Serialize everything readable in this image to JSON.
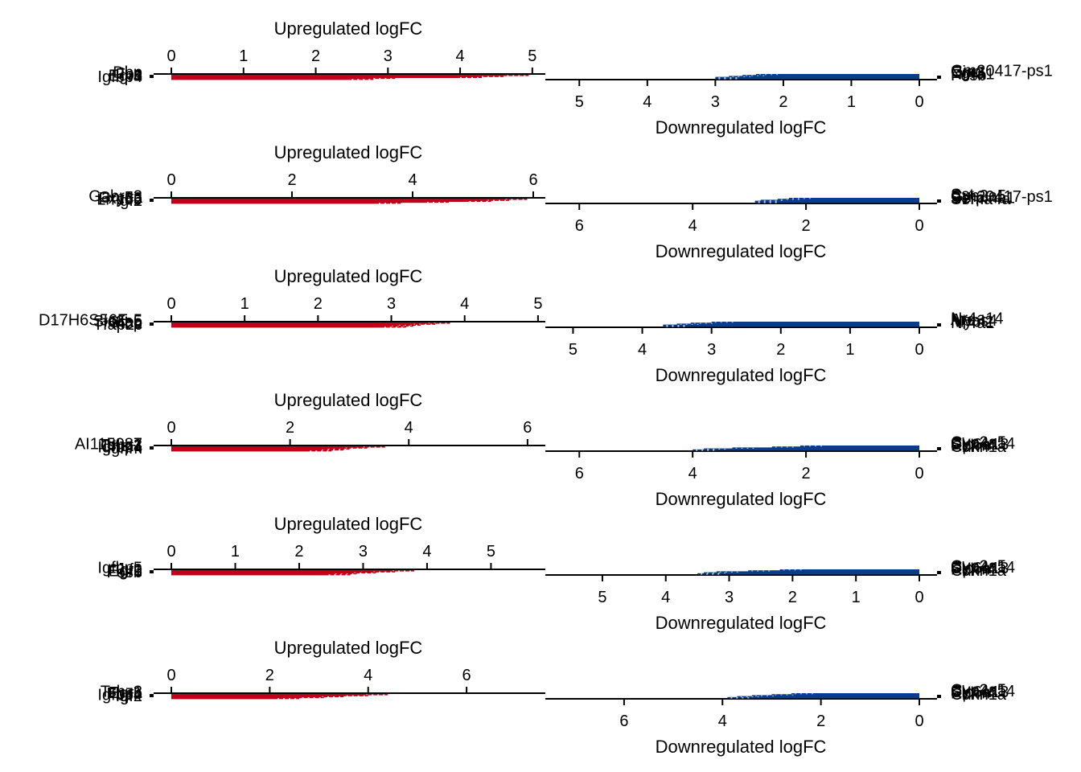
{
  "colors": {
    "up": "#C0001A",
    "down": "#0B3C8C",
    "axis": "#000000",
    "background": "#FFFFFF",
    "star": "#FFFFFF"
  },
  "chart_data": [
    {
      "type": "bar",
      "up_title": "Upregulated logFC",
      "down_title": "Downregulated logFC",
      "up_xlim": [
        0,
        5.18
      ],
      "down_xlim": [
        0,
        5.5
      ],
      "up_ticks": [
        0,
        1,
        2,
        3,
        4,
        5
      ],
      "down_ticks": [
        0,
        1,
        2,
        3,
        4,
        5
      ],
      "up_labels": [
        "Igfbp4",
        "Egr1",
        "Fos",
        "Jun",
        "Dbp"
      ],
      "down_labels": [
        "Fosb",
        "Nr4a1",
        "Egr3",
        "Ciart",
        "Gm20417-ps1"
      ],
      "up_values": [
        4.95,
        4.6,
        4.3,
        3.1,
        2.8
      ],
      "down_values": [
        2.4,
        2.6,
        2.8,
        3.0,
        3.0
      ]
    },
    {
      "type": "bar",
      "up_title": "Upregulated logFC",
      "down_title": "Downregulated logFC",
      "up_xlim": [
        0,
        6.2
      ],
      "down_xlim": [
        0,
        6.6
      ],
      "up_ticks": [
        0,
        2,
        4,
        6
      ],
      "down_ticks": [
        0,
        2,
        4,
        6
      ],
      "up_labels": [
        "Igf2",
        "Lrrc55",
        "Fxyd3",
        "Gm5a",
        "Gabra3"
      ],
      "down_labels": [
        "Sema4a",
        "Serpina1",
        "Gm20417-ps1",
        "Cyp2a5",
        "Sst"
      ],
      "up_values": [
        5.9,
        5.6,
        5.3,
        4.6,
        3.8
      ],
      "down_values": [
        2.3,
        2.5,
        2.8,
        2.9,
        2.9
      ]
    },
    {
      "type": "bar",
      "up_title": "Upregulated logFC",
      "down_title": "Downregulated logFC",
      "up_xlim": [
        0,
        5.1
      ],
      "down_xlim": [
        0,
        5.4
      ],
      "up_ticks": [
        0,
        1,
        2,
        3,
        4,
        5
      ],
      "down_ticks": [
        0,
        1,
        2,
        3,
        4,
        5
      ],
      "up_labels": [
        "Tfap2c",
        "Mbp",
        "Gfap",
        "Slc6a5",
        "D17H6S56E-5"
      ],
      "down_labels": [
        "Nr4a1",
        "Mybl2",
        "Npas4",
        "Arc",
        "Nr4a14"
      ],
      "up_values": [
        3.8,
        3.6,
        3.4,
        3.3,
        3.2
      ],
      "down_values": [
        3.0,
        3.3,
        3.5,
        3.7,
        3.7
      ]
    },
    {
      "type": "bar",
      "up_title": "Upregulated logFC",
      "down_title": "Downregulated logFC",
      "up_xlim": [
        0,
        6.3
      ],
      "down_xlim": [
        0,
        6.6
      ],
      "up_ticks": [
        0,
        2,
        4,
        6
      ],
      "down_ticks": [
        0,
        2,
        4,
        6
      ],
      "up_labels": [
        "Ighm",
        "Igfbp4",
        "Chst1",
        "Tshz3",
        "AI115087"
      ],
      "down_labels": [
        "Cdkn1a",
        "Rprm",
        "Slc6a13",
        "Cyp4a14",
        "Cyp2a5"
      ],
      "up_values": [
        3.6,
        3.3,
        3.0,
        2.9,
        2.7
      ],
      "down_values": [
        2.1,
        2.6,
        3.3,
        3.8,
        4.0
      ]
    },
    {
      "type": "bar",
      "up_title": "Upregulated logFC",
      "down_title": "Downregulated logFC",
      "up_xlim": [
        0,
        5.85
      ],
      "down_xlim": [
        0,
        5.9
      ],
      "up_ticks": [
        0,
        1,
        2,
        3,
        4,
        5
      ],
      "down_ticks": [
        0,
        1,
        2,
        3,
        4,
        5
      ],
      "up_labels": [
        "Fosb",
        "Egr1",
        "Igf2",
        "Jun",
        "Igfbp5"
      ],
      "down_labels": [
        "Cdkn1a",
        "Rprm",
        "Slc6a13",
        "Cyp4a14",
        "Cyp2a5"
      ],
      "up_values": [
        3.8,
        3.5,
        3.2,
        2.9,
        2.8
      ],
      "down_values": [
        2.2,
        2.7,
        3.2,
        3.4,
        3.5
      ]
    },
    {
      "type": "bar",
      "up_title": "Upregulated logFC",
      "down_title": "Downregulated logFC",
      "up_xlim": [
        0,
        7.6
      ],
      "down_xlim": [
        0,
        7.6
      ],
      "up_ticks": [
        0,
        2,
        4,
        6
      ],
      "down_ticks": [
        0,
        2,
        4,
        6
      ],
      "up_labels": [
        "Igf2",
        "Igfbp4",
        "Fosb",
        "Egr1",
        "Tshz3"
      ],
      "down_labels": [
        "Cdkn1a",
        "Rprm",
        "Slc6a13",
        "Cyp4a14",
        "Cyp2a5"
      ],
      "up_values": [
        4.4,
        4.0,
        3.5,
        3.1,
        2.6
      ],
      "down_values": [
        2.6,
        3.0,
        3.4,
        3.7,
        3.9
      ]
    }
  ]
}
